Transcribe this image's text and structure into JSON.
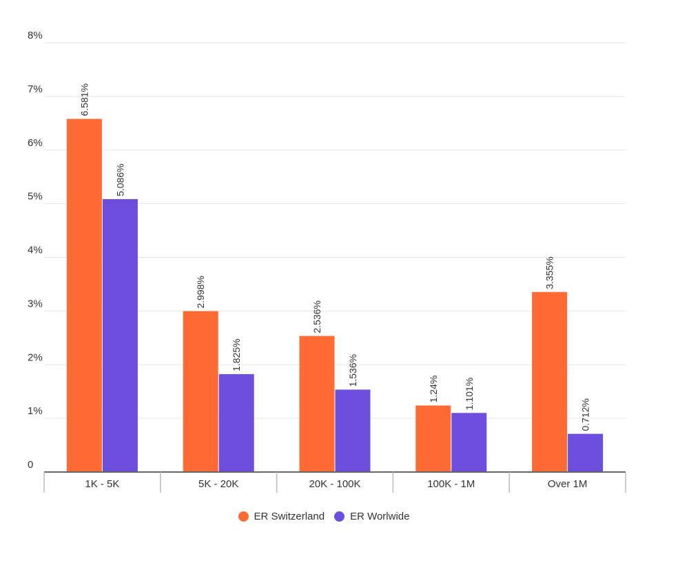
{
  "chart_data": {
    "type": "bar",
    "categories": [
      "1K - 5K",
      "5K - 20K",
      "20K - 100K",
      "100K - 1M",
      "Over 1M"
    ],
    "series": [
      {
        "name": "ER Switzerland",
        "color": "#ff6b35",
        "values": [
          6.581,
          2.998,
          2.536,
          1.24,
          3.355
        ],
        "labels": [
          "6.581%",
          "2.998%",
          "2.536%",
          "1.24%",
          "3.355%"
        ]
      },
      {
        "name": "ER Worlwide",
        "color": "#6b4fdc",
        "values": [
          5.086,
          1.825,
          1.536,
          1.101,
          0.712
        ],
        "labels": [
          "5.086%",
          "1.825%",
          "1.536%",
          "1.101%",
          "0.712%"
        ]
      }
    ],
    "ylim": [
      0,
      8
    ],
    "yticks": [
      {
        "value": 0,
        "label": "0"
      },
      {
        "value": 1,
        "label": "1%"
      },
      {
        "value": 2,
        "label": "2%"
      },
      {
        "value": 3,
        "label": "3%"
      },
      {
        "value": 4,
        "label": "4%"
      },
      {
        "value": 5,
        "label": "5%"
      },
      {
        "value": 6,
        "label": "6%"
      },
      {
        "value": 7,
        "label": "7%"
      },
      {
        "value": 8,
        "label": "8%"
      }
    ],
    "grid": true,
    "legend_position": "bottom-center",
    "data_label_rotation": "vertical"
  }
}
